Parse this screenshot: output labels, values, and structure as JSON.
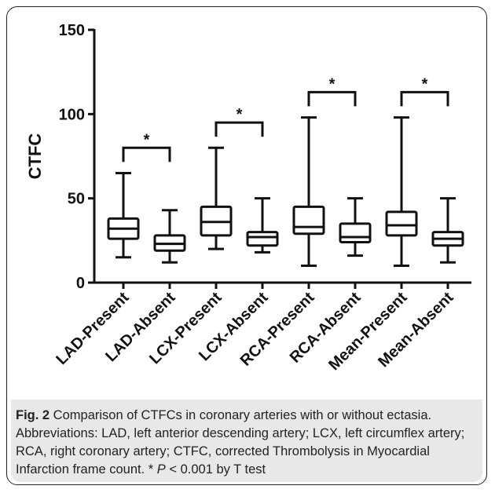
{
  "chart_data": {
    "type": "boxplot",
    "ylabel": "CTFC",
    "ylim": [
      0,
      150
    ],
    "yticks": [
      0,
      50,
      100,
      150
    ],
    "categories": [
      "LAD-Present",
      "LAD-Absent",
      "LCX-Present",
      "LCX-Absent",
      "RCA-Present",
      "RCA-Absent",
      "Mean-Present",
      "Mean-Absent"
    ],
    "boxes": [
      {
        "min": 15,
        "q1": 26,
        "median": 32,
        "q3": 38,
        "max": 65
      },
      {
        "min": 12,
        "q1": 19,
        "median": 23,
        "q3": 28,
        "max": 43
      },
      {
        "min": 20,
        "q1": 28,
        "median": 36,
        "q3": 45,
        "max": 80
      },
      {
        "min": 18,
        "q1": 22,
        "median": 27,
        "q3": 30,
        "max": 50
      },
      {
        "min": 10,
        "q1": 29,
        "median": 33,
        "q3": 45,
        "max": 98
      },
      {
        "min": 16,
        "q1": 24,
        "median": 27,
        "q3": 35,
        "max": 50
      },
      {
        "min": 10,
        "q1": 28,
        "median": 34,
        "q3": 42,
        "max": 98
      },
      {
        "min": 12,
        "q1": 22,
        "median": 26,
        "q3": 30,
        "max": 50
      }
    ],
    "significance": [
      {
        "from": 0,
        "to": 1,
        "label": "*",
        "height": 80
      },
      {
        "from": 2,
        "to": 3,
        "label": "*",
        "height": 95
      },
      {
        "from": 4,
        "to": 5,
        "label": "*",
        "height": 113
      },
      {
        "from": 6,
        "to": 7,
        "label": "*",
        "height": 113
      }
    ]
  },
  "caption": {
    "fig_label": "Fig. 2",
    "text": " Comparison of CTFCs in coronary arteries with or without ectasia. Abbreviations: LAD, left anterior descending artery; LCX, left circumflex artery; RCA, right coronary artery; CTFC, corrected Thrombolysis in Myocardial Infarction frame count. * ",
    "p_symbol": "P",
    "p_text": " < 0.001 by T test"
  }
}
